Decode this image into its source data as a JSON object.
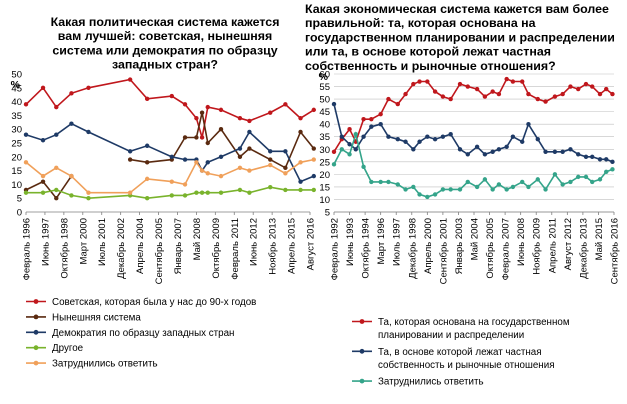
{
  "chart_data": [
    {
      "type": "line",
      "title": "Какая политическая система кажется вам лучшей: советская, нынешняя система или демократия по образцу западных стран?",
      "ylabel": "%",
      "ylim": [
        0,
        50
      ],
      "yticks": [
        0,
        5,
        10,
        15,
        20,
        25,
        30,
        35,
        40,
        45,
        50
      ],
      "grid": false,
      "legend": "bottom",
      "x_labels": [
        "Февраль 1996",
        "Июнь 1997",
        "Октябрь 1998",
        "Март 2000",
        "Июль 2001",
        "Декабрь 2002",
        "Апрель 2004",
        "Сентябрь 2005",
        "Январь 2007",
        "Май 2008",
        "Октябрь 2009",
        "Февраль 2011",
        "Июнь 2012",
        "Ноябрь 2013",
        "Апрель 2015",
        "Август 2016"
      ],
      "x": [
        0,
        0.9,
        1.6,
        2.4,
        3.3,
        5.5,
        6.4,
        7.7,
        8.4,
        9.0,
        9.3,
        9.6,
        10.3,
        11.3,
        11.8,
        12.9,
        13.7,
        14.5,
        15.2
      ],
      "series": [
        {
          "name": "Советская, которая была у нас до 90-х годов",
          "color": "#c0171c",
          "values": [
            39,
            45,
            38,
            43,
            45,
            48,
            41,
            42,
            39,
            34,
            27,
            38,
            37,
            34,
            33,
            36,
            39,
            34,
            37
          ]
        },
        {
          "name": "Нынешняя система",
          "color": "#5a2a10",
          "values": [
            8,
            11,
            5,
            13,
            null,
            19,
            18,
            19,
            27,
            27,
            36,
            25,
            30,
            20,
            23,
            19,
            16,
            29,
            23
          ]
        },
        {
          "name": "Демократия по образцу западных стран",
          "color": "#1e3a66",
          "values": [
            28,
            26,
            28,
            32,
            29,
            22,
            24,
            20,
            19,
            19,
            15,
            18,
            20,
            23,
            29,
            22,
            22,
            11,
            13
          ]
        },
        {
          "name": "Другое",
          "color": "#79b32c",
          "values": [
            7,
            7,
            8,
            6,
            5,
            6,
            5,
            6,
            6,
            7,
            7,
            7,
            7,
            8,
            7,
            9,
            8,
            8,
            8
          ]
        },
        {
          "name": "Затруднились ответить",
          "color": "#f0a05a",
          "values": [
            18,
            13,
            16,
            13,
            7,
            7,
            12,
            11,
            10,
            18,
            15,
            14,
            13,
            16,
            15,
            17,
            14,
            18,
            19
          ]
        }
      ]
    },
    {
      "type": "line",
      "title": "Какая экономическая система кажется вам более правильной: та, которая основана на государственном планировании и распределении или та, в основе которой лежат частная собственность и рыночные отношения?",
      "ylabel": "%",
      "ylim": [
        5,
        60
      ],
      "yticks": [
        5,
        10,
        15,
        20,
        25,
        30,
        35,
        40,
        45,
        50,
        55,
        60
      ],
      "grid": true,
      "legend": "bottom",
      "x_labels": [
        "Февраль 1992",
        "Июнь 1993",
        "Октябрь 1994",
        "Март 1996",
        "Июль 1997",
        "Декабрь 1998",
        "Апрель 2000",
        "Сентябрь 2001",
        "Январь 2003",
        "Май 2004",
        "Октябрь 2005",
        "Февраль 2007",
        "Июнь 2008",
        "Ноябрь 2009",
        "Апрель 2011",
        "Август 2012",
        "Декабрь 2013",
        "Май 2015",
        "Сентябрь 2016"
      ],
      "x": [
        0,
        0.5,
        1.0,
        1.4,
        1.9,
        2.4,
        3.0,
        3.5,
        4.1,
        4.6,
        5.1,
        5.5,
        6.0,
        6.5,
        7.0,
        7.5,
        8.1,
        8.6,
        9.2,
        9.7,
        10.2,
        10.6,
        11.1,
        11.5,
        12.1,
        12.5,
        13.1,
        13.6,
        14.2,
        14.7,
        15.2,
        15.7,
        16.2,
        16.6,
        17.1,
        17.5,
        17.9
      ],
      "series": [
        {
          "name": "Та, которая основана на государственном планировании и распределении",
          "color": "#c0171c",
          "values": [
            29,
            34,
            38,
            33,
            42,
            42,
            44,
            50,
            48,
            52,
            56,
            57,
            57,
            53,
            51,
            50,
            56,
            55,
            54,
            51,
            53,
            52,
            58,
            57,
            57,
            52,
            50,
            49,
            51,
            52,
            55,
            54,
            56,
            55,
            52,
            54,
            52
          ]
        },
        {
          "name": "Та, в основе которой лежат частная собственность и рыночные отношения",
          "color": "#1e3a66",
          "values": [
            48,
            35,
            32,
            30,
            35,
            39,
            40,
            35,
            34,
            33,
            30,
            33,
            35,
            34,
            35,
            36,
            30,
            28,
            31,
            28,
            29,
            30,
            31,
            35,
            33,
            40,
            34,
            29,
            29,
            29,
            30,
            28,
            27,
            27,
            26,
            26,
            25
          ]
        },
        {
          "name": "Затруднились ответить",
          "color": "#34a48a",
          "values": [
            24,
            30,
            28,
            36,
            23,
            17,
            17,
            17,
            16,
            14,
            15,
            12,
            11,
            12,
            14,
            14,
            14,
            17,
            15,
            18,
            14,
            16,
            14,
            15,
            17,
            15,
            18,
            14,
            20,
            16,
            17,
            19,
            19,
            17,
            18,
            21,
            22
          ]
        }
      ]
    }
  ]
}
